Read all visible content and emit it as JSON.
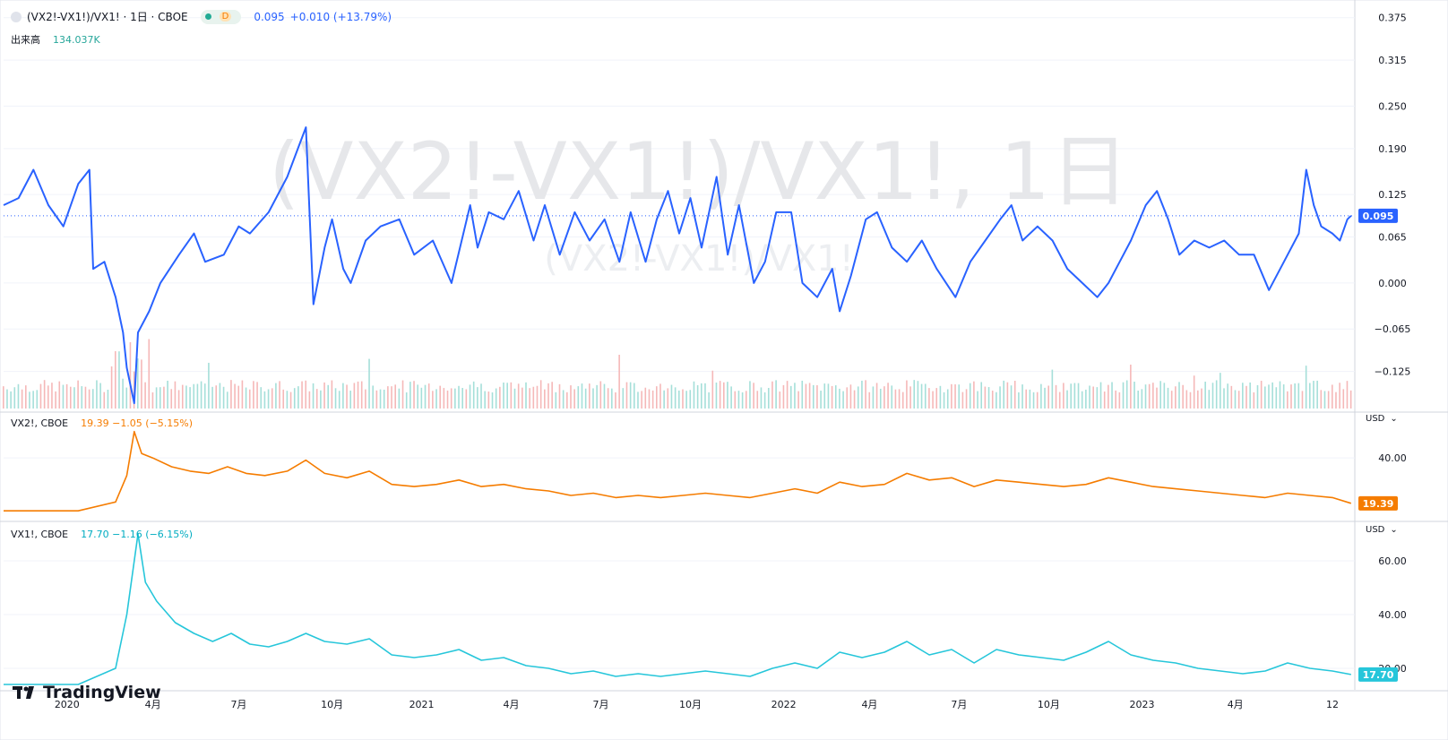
{
  "symbol": {
    "title": "(VX2!-VX1!)/VX1! · 1日 · CBOE",
    "interval_badge": "D",
    "value": "0.095",
    "change": "+0.010 (+13.79%)",
    "volume_label": "出来高",
    "volume_value": "134.037K",
    "watermark_main": "(VX2!-VX1!)/VX1!, 1日",
    "watermark_sub": "(VX2!-VX1!)/VX1!"
  },
  "panes": [
    {
      "name": "VX2!, CBOE",
      "values": "19.39  −1.05 (−5.15%)",
      "currency": "USD",
      "last": "19.39",
      "color": "#f57c00"
    },
    {
      "name": "VX1!, CBOE",
      "values": "17.70  −1.16 (−6.15%)",
      "currency": "USD",
      "last": "17.70",
      "color": "#26c6da"
    }
  ],
  "branding": "TradingView",
  "chart_data": [
    {
      "type": "line",
      "series": [
        {
          "name": "(VX2!-VX1!)/VX1!",
          "color": "#2962ff"
        }
      ],
      "y_ticks": [
        0.375,
        0.315,
        0.25,
        0.19,
        0.125,
        0.065,
        0.0,
        -0.065,
        -0.125
      ],
      "y_tick_labels": [
        "0.375",
        "0.315",
        "0.250",
        "0.190",
        "0.125",
        "0.065",
        "0.000",
        "−0.065",
        "−0.125"
      ],
      "last_value": 0.095,
      "x_tick_labels": [
        "2020",
        "4月",
        "7月",
        "10月",
        "2021",
        "4月",
        "7月",
        "10月",
        "2022",
        "4月",
        "7月",
        "10月",
        "2023",
        "4月",
        "12"
      ],
      "points": [
        [
          0,
          0.11
        ],
        [
          4,
          0.12
        ],
        [
          8,
          0.16
        ],
        [
          12,
          0.11
        ],
        [
          16,
          0.08
        ],
        [
          20,
          0.14
        ],
        [
          23,
          0.16
        ],
        [
          24,
          0.02
        ],
        [
          27,
          0.03
        ],
        [
          30,
          -0.02
        ],
        [
          32,
          -0.07
        ],
        [
          33,
          -0.12
        ],
        [
          35,
          -0.17
        ],
        [
          36,
          -0.07
        ],
        [
          39,
          -0.04
        ],
        [
          42,
          0.0
        ],
        [
          47,
          0.04
        ],
        [
          51,
          0.07
        ],
        [
          54,
          0.03
        ],
        [
          59,
          0.04
        ],
        [
          63,
          0.08
        ],
        [
          66,
          0.07
        ],
        [
          71,
          0.1
        ],
        [
          76,
          0.15
        ],
        [
          81,
          0.22
        ],
        [
          83,
          -0.03
        ],
        [
          86,
          0.05
        ],
        [
          88,
          0.09
        ],
        [
          91,
          0.02
        ],
        [
          93,
          0.0
        ],
        [
          97,
          0.06
        ],
        [
          101,
          0.08
        ],
        [
          106,
          0.09
        ],
        [
          110,
          0.04
        ],
        [
          115,
          0.06
        ],
        [
          120,
          0.0
        ],
        [
          125,
          0.11
        ],
        [
          127,
          0.05
        ],
        [
          130,
          0.1
        ],
        [
          134,
          0.09
        ],
        [
          138,
          0.13
        ],
        [
          142,
          0.06
        ],
        [
          145,
          0.11
        ],
        [
          149,
          0.04
        ],
        [
          153,
          0.1
        ],
        [
          157,
          0.06
        ],
        [
          161,
          0.09
        ],
        [
          165,
          0.03
        ],
        [
          168,
          0.1
        ],
        [
          172,
          0.03
        ],
        [
          175,
          0.09
        ],
        [
          178,
          0.13
        ],
        [
          181,
          0.07
        ],
        [
          184,
          0.12
        ],
        [
          187,
          0.05
        ],
        [
          191,
          0.15
        ],
        [
          194,
          0.04
        ],
        [
          197,
          0.11
        ],
        [
          201,
          0.0
        ],
        [
          204,
          0.03
        ],
        [
          207,
          0.1
        ],
        [
          211,
          0.1
        ],
        [
          214,
          0.0
        ],
        [
          218,
          -0.02
        ],
        [
          222,
          0.02
        ],
        [
          224,
          -0.04
        ],
        [
          227,
          0.01
        ],
        [
          231,
          0.09
        ],
        [
          234,
          0.1
        ],
        [
          238,
          0.05
        ],
        [
          242,
          0.03
        ],
        [
          246,
          0.06
        ],
        [
          250,
          0.02
        ],
        [
          255,
          -0.02
        ],
        [
          259,
          0.03
        ],
        [
          263,
          0.06
        ],
        [
          267,
          0.09
        ],
        [
          270,
          0.11
        ],
        [
          273,
          0.06
        ],
        [
          277,
          0.08
        ],
        [
          281,
          0.06
        ],
        [
          285,
          0.02
        ],
        [
          289,
          0.0
        ],
        [
          293,
          -0.02
        ],
        [
          296,
          0.0
        ],
        [
          299,
          0.03
        ],
        [
          302,
          0.06
        ],
        [
          306,
          0.11
        ],
        [
          309,
          0.13
        ],
        [
          312,
          0.09
        ],
        [
          315,
          0.04
        ],
        [
          319,
          0.06
        ],
        [
          323,
          0.05
        ],
        [
          327,
          0.06
        ],
        [
          331,
          0.04
        ],
        [
          335,
          0.04
        ],
        [
          339,
          -0.01
        ],
        [
          343,
          0.03
        ],
        [
          347,
          0.07
        ],
        [
          349,
          0.16
        ],
        [
          351,
          0.11
        ],
        [
          353,
          0.08
        ],
        [
          356,
          0.07
        ],
        [
          358,
          0.06
        ],
        [
          360,
          0.09
        ],
        [
          361,
          0.095
        ]
      ],
      "volume_ticks": []
    },
    {
      "type": "line",
      "series": [
        {
          "name": "VX2!, CBOE",
          "color": "#f57c00"
        }
      ],
      "y_tick_labels": [
        "40.00"
      ],
      "y_ticks": [
        40
      ],
      "last_value": 19.39,
      "points": [
        [
          0,
          16
        ],
        [
          20,
          16
        ],
        [
          30,
          20
        ],
        [
          33,
          32
        ],
        [
          35,
          52
        ],
        [
          37,
          42
        ],
        [
          40,
          40
        ],
        [
          45,
          36
        ],
        [
          50,
          34
        ],
        [
          55,
          33
        ],
        [
          60,
          36
        ],
        [
          65,
          33
        ],
        [
          70,
          32
        ],
        [
          76,
          34
        ],
        [
          81,
          39
        ],
        [
          86,
          33
        ],
        [
          92,
          31
        ],
        [
          98,
          34
        ],
        [
          104,
          28
        ],
        [
          110,
          27
        ],
        [
          116,
          28
        ],
        [
          122,
          30
        ],
        [
          128,
          27
        ],
        [
          134,
          28
        ],
        [
          140,
          26
        ],
        [
          146,
          25
        ],
        [
          152,
          23
        ],
        [
          158,
          24
        ],
        [
          164,
          22
        ],
        [
          170,
          23
        ],
        [
          176,
          22
        ],
        [
          182,
          23
        ],
        [
          188,
          24
        ],
        [
          194,
          23
        ],
        [
          200,
          22
        ],
        [
          206,
          24
        ],
        [
          212,
          26
        ],
        [
          218,
          24
        ],
        [
          224,
          29
        ],
        [
          230,
          27
        ],
        [
          236,
          28
        ],
        [
          242,
          33
        ],
        [
          248,
          30
        ],
        [
          254,
          31
        ],
        [
          260,
          27
        ],
        [
          266,
          30
        ],
        [
          272,
          29
        ],
        [
          278,
          28
        ],
        [
          284,
          27
        ],
        [
          290,
          28
        ],
        [
          296,
          31
        ],
        [
          302,
          29
        ],
        [
          308,
          27
        ],
        [
          314,
          26
        ],
        [
          320,
          25
        ],
        [
          326,
          24
        ],
        [
          332,
          23
        ],
        [
          338,
          22
        ],
        [
          344,
          24
        ],
        [
          350,
          23
        ],
        [
          356,
          22
        ],
        [
          361,
          19.39
        ]
      ]
    },
    {
      "type": "line",
      "series": [
        {
          "name": "VX1!, CBOE",
          "color": "#26c6da"
        }
      ],
      "y_tick_labels": [
        "60.00",
        "40.00",
        "20.00"
      ],
      "y_ticks": [
        60,
        40,
        20
      ],
      "last_value": 17.7,
      "points": [
        [
          0,
          14
        ],
        [
          20,
          14
        ],
        [
          30,
          20
        ],
        [
          33,
          40
        ],
        [
          36,
          70
        ],
        [
          38,
          52
        ],
        [
          41,
          45
        ],
        [
          46,
          37
        ],
        [
          51,
          33
        ],
        [
          56,
          30
        ],
        [
          61,
          33
        ],
        [
          66,
          29
        ],
        [
          71,
          28
        ],
        [
          76,
          30
        ],
        [
          81,
          33
        ],
        [
          86,
          30
        ],
        [
          92,
          29
        ],
        [
          98,
          31
        ],
        [
          104,
          25
        ],
        [
          110,
          24
        ],
        [
          116,
          25
        ],
        [
          122,
          27
        ],
        [
          128,
          23
        ],
        [
          134,
          24
        ],
        [
          140,
          21
        ],
        [
          146,
          20
        ],
        [
          152,
          18
        ],
        [
          158,
          19
        ],
        [
          164,
          17
        ],
        [
          170,
          18
        ],
        [
          176,
          17
        ],
        [
          182,
          18
        ],
        [
          188,
          19
        ],
        [
          194,
          18
        ],
        [
          200,
          17
        ],
        [
          206,
          20
        ],
        [
          212,
          22
        ],
        [
          218,
          20
        ],
        [
          224,
          26
        ],
        [
          230,
          24
        ],
        [
          236,
          26
        ],
        [
          242,
          30
        ],
        [
          248,
          25
        ],
        [
          254,
          27
        ],
        [
          260,
          22
        ],
        [
          266,
          27
        ],
        [
          272,
          25
        ],
        [
          278,
          24
        ],
        [
          284,
          23
        ],
        [
          290,
          26
        ],
        [
          296,
          30
        ],
        [
          302,
          25
        ],
        [
          308,
          23
        ],
        [
          314,
          22
        ],
        [
          320,
          20
        ],
        [
          326,
          19
        ],
        [
          332,
          18
        ],
        [
          338,
          19
        ],
        [
          344,
          22
        ],
        [
          350,
          20
        ],
        [
          356,
          19
        ],
        [
          361,
          17.7
        ]
      ]
    }
  ]
}
